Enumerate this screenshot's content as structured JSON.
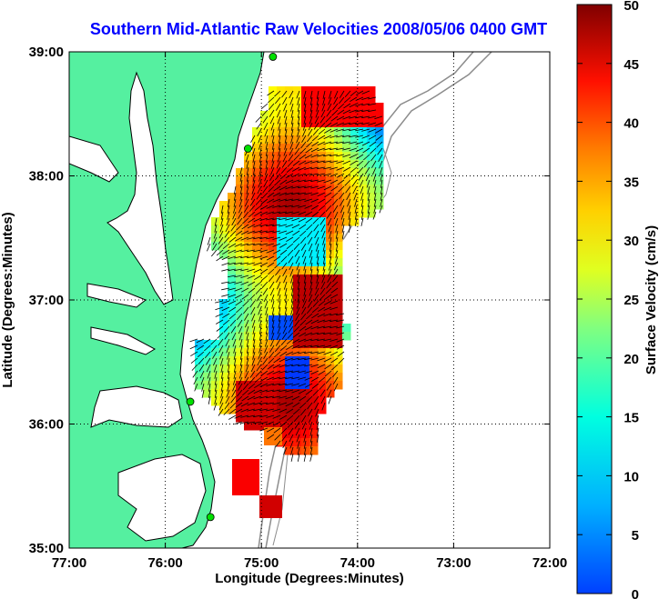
{
  "title": "Southern Mid-Atlantic Raw Velocities 2008/05/06 0400 GMT",
  "x_axis": {
    "label": "Longitude (Degrees:Minutes)",
    "ticks": [
      "77:00",
      "76:00",
      "75:00",
      "74:00",
      "73:00",
      "72:00"
    ]
  },
  "y_axis": {
    "label": "Latitude (Degrees:Minutes)",
    "ticks": [
      "39:00",
      "38:00",
      "37:00",
      "36:00",
      "35:00"
    ]
  },
  "colorbar": {
    "label": "Surface Velocity (cm/s)",
    "ticks": [
      "50",
      "45",
      "40",
      "35",
      "30",
      "25",
      "20",
      "15",
      "10",
      "5",
      "0"
    ],
    "min": 0,
    "max": 50,
    "colormap": "jet"
  },
  "colors": {
    "title": "#0000ff",
    "land": "#55f0a0",
    "ocean": "#ffffff",
    "coast": "#000000",
    "bathymetry": "#8c8c8c",
    "station": "#00e000"
  },
  "map": {
    "lon_range": [
      -77,
      -72
    ],
    "lat_range": [
      35,
      39
    ],
    "grid": "dotted",
    "stations": [
      {
        "lon": -74.88,
        "lat": 38.96
      },
      {
        "lon": -75.14,
        "lat": 38.22
      },
      {
        "lon": -75.74,
        "lat": 36.18
      },
      {
        "lon": -75.53,
        "lat": 35.25
      }
    ]
  }
}
